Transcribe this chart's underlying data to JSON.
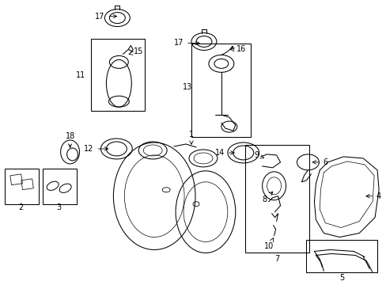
{
  "bg_color": "#ffffff",
  "line_color": "#1a1a1a",
  "fig_width": 4.89,
  "fig_height": 3.6,
  "dpi": 100,
  "lw": 0.75
}
